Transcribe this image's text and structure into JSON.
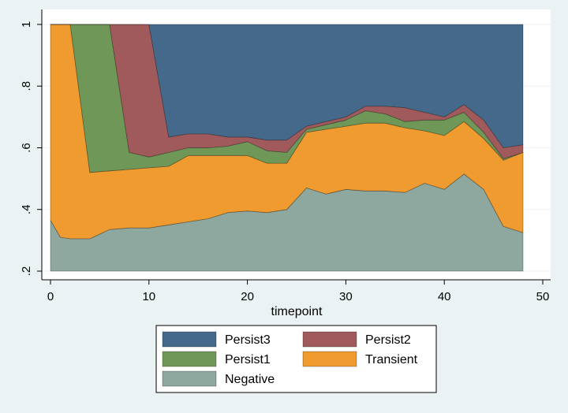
{
  "chart_data": {
    "type": "area",
    "stacked": true,
    "xlabel": "timepoint",
    "ylabel": "",
    "xlim": [
      0,
      50
    ],
    "ylim": [
      0.2,
      1.0
    ],
    "xticks": [
      0,
      10,
      20,
      30,
      40,
      50
    ],
    "xtick_labels": [
      "0",
      "10",
      "20",
      "30",
      "40",
      "50"
    ],
    "yticks": [
      0.2,
      0.4,
      0.6,
      0.8,
      1.0
    ],
    "ytick_labels": [
      ".2",
      ".4",
      ".6",
      ".8",
      "1"
    ],
    "grid": "horizontal",
    "legend_position": "bottom",
    "x": [
      0,
      1,
      2,
      4,
      6,
      8,
      10,
      12,
      14,
      16,
      18,
      20,
      22,
      24,
      26,
      28,
      30,
      32,
      34,
      36,
      38,
      40,
      42,
      44,
      46,
      48
    ],
    "series": [
      {
        "name": "Negative",
        "color": "#8ea89f",
        "values": [
          0.365,
          0.31,
          0.305,
          0.305,
          0.335,
          0.34,
          0.34,
          0.35,
          0.36,
          0.37,
          0.39,
          0.395,
          0.39,
          0.4,
          0.47,
          0.45,
          0.465,
          0.46,
          0.46,
          0.455,
          0.485,
          0.465,
          0.515,
          0.465,
          0.345,
          0.325
        ]
      },
      {
        "name": "Transient",
        "color": "#f09b30",
        "values": [
          1.0,
          1.0,
          1.0,
          0.52,
          0.525,
          0.53,
          0.535,
          0.54,
          0.575,
          0.575,
          0.575,
          0.575,
          0.55,
          0.55,
          0.65,
          0.66,
          0.67,
          0.68,
          0.68,
          0.665,
          0.655,
          0.64,
          0.685,
          0.63,
          0.56,
          0.585
        ]
      },
      {
        "name": "Persist1",
        "color": "#6f9858",
        "values": [
          1.0,
          1.0,
          1.0,
          1.0,
          1.0,
          0.585,
          0.57,
          0.585,
          0.6,
          0.6,
          0.605,
          0.62,
          0.59,
          0.585,
          0.66,
          0.675,
          0.69,
          0.72,
          0.71,
          0.685,
          0.69,
          0.69,
          0.715,
          0.65,
          0.565,
          0.585
        ]
      },
      {
        "name": "Persist2",
        "color": "#a05a5c",
        "values": [
          1.0,
          1.0,
          1.0,
          1.0,
          1.0,
          1.0,
          1.0,
          0.635,
          0.645,
          0.645,
          0.635,
          0.635,
          0.625,
          0.625,
          0.67,
          0.685,
          0.7,
          0.735,
          0.735,
          0.73,
          0.715,
          0.7,
          0.74,
          0.69,
          0.6,
          0.61
        ]
      },
      {
        "name": "Persist3",
        "color": "#45698a",
        "values": [
          1.0,
          1.0,
          1.0,
          1.0,
          1.0,
          1.0,
          1.0,
          1.0,
          1.0,
          1.0,
          1.0,
          1.0,
          1.0,
          1.0,
          1.0,
          1.0,
          1.0,
          1.0,
          1.0,
          1.0,
          1.0,
          1.0,
          1.0,
          1.0,
          1.0,
          1.0
        ]
      }
    ],
    "legend_order": [
      "Persist3",
      "Persist2",
      "Persist1",
      "Transient",
      "Negative"
    ],
    "legend_label_text": {
      "Persist3": "Persist3",
      "Persist2": "Persist2",
      "Persist1": "Persist1",
      "Transient": " Transient",
      "Negative": "Negative"
    }
  }
}
